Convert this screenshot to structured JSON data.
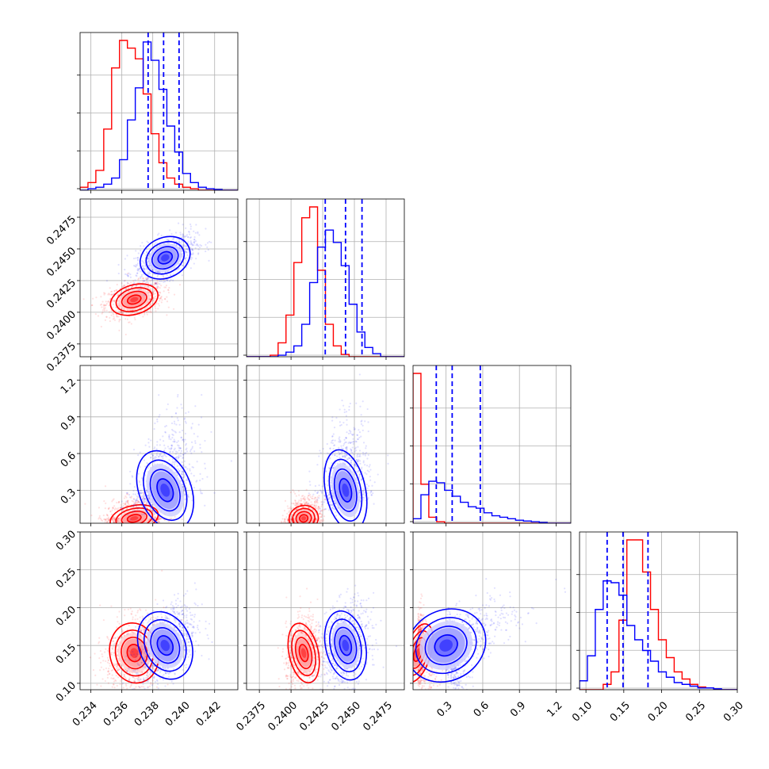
{
  "chart_data": {
    "type": "corner",
    "grid": true,
    "colors": {
      "red_series": "#ff0000",
      "blue_series": "#0000ff",
      "quantile_lines": "#0000ff"
    },
    "parameters": [
      {
        "range": [
          0.2333,
          0.2435
        ],
        "ticks": [
          0.234,
          0.236,
          0.238,
          0.24,
          0.242
        ],
        "tick_labels": [
          "0.234",
          "0.236",
          "0.238",
          "0.240",
          "0.242"
        ]
      },
      {
        "range": [
          0.23649,
          0.24894
        ],
        "ticks": [
          0.2375,
          0.24,
          0.2425,
          0.245,
          0.2475
        ],
        "tick_labels": [
          "0.2375",
          "0.2400",
          "0.2425",
          "0.2450",
          "0.2475"
        ]
      },
      {
        "range": [
          0.03,
          1.32
        ],
        "ticks": [
          0.3,
          0.6,
          0.9,
          1.2
        ],
        "tick_labels": [
          "0.3",
          "0.6",
          "0.9",
          "1.2"
        ]
      },
      {
        "range": [
          0.0915,
          0.3
        ],
        "ticks": [
          0.1,
          0.15,
          0.2,
          0.25,
          0.3
        ],
        "tick_labels": [
          "0.10",
          "0.15",
          "0.20",
          "0.25",
          "0.30"
        ]
      }
    ],
    "quantiles_blue": [
      [
        0.2377,
        0.2387,
        0.2397
      ],
      [
        0.2427,
        0.2443,
        0.2456
      ],
      [
        0.22,
        0.35,
        0.58
      ],
      [
        0.128,
        0.149,
        0.182
      ]
    ],
    "series": [
      {
        "color": "#ff0000",
        "means": [
          0.2368,
          0.241,
          0.07,
          0.14
        ],
        "sds": [
          0.00075,
          0.00055,
          0.05,
          0.019
        ],
        "correlations": {
          "0-1": 0.3,
          "0-2": 0.2,
          "0-3": 0.2,
          "1-2": 0.2,
          "1-3": 0.2,
          "2-3": -0.3
        },
        "peak_densities": [
          1,
          1,
          1,
          1
        ],
        "histogram_values": [
          [
            0.02,
            0.05,
            0.13,
            0.4,
            0.8,
            0.98,
            0.93,
            0.86,
            0.63,
            0.37,
            0.18,
            0.08,
            0.04,
            0.02,
            0.01,
            0,
            0,
            0,
            0,
            0
          ],
          [
            0,
            0,
            0,
            0.01,
            0.09,
            0.27,
            0.61,
            0.9,
            0.97,
            0.56,
            0.21,
            0.07,
            0.015,
            0,
            0,
            0,
            0,
            0,
            0,
            0
          ],
          [
            1.0,
            0.26,
            0.04,
            0.01,
            0,
            0,
            0,
            0,
            0,
            0,
            0,
            0,
            0,
            0,
            0,
            0,
            0,
            0,
            0,
            0
          ],
          [
            0,
            0,
            0,
            0.03,
            0.1,
            0.39,
            0.84,
            0.84,
            0.66,
            0.45,
            0.28,
            0.18,
            0.1,
            0.06,
            0.03,
            0.015,
            0.01,
            0,
            0,
            0
          ]
        ]
      },
      {
        "color": "#0000ff",
        "means": [
          0.2388,
          0.2443,
          0.3,
          0.15
        ],
        "sds": [
          0.0008,
          0.00075,
          0.16,
          0.022
        ],
        "correlations": {
          "0-1": 0.55,
          "0-2": 0.4,
          "0-3": 0.45,
          "1-2": 0.2,
          "1-3": 0.2,
          "2-3": 0.7
        },
        "peak_densities": [
          1,
          1,
          1,
          1
        ],
        "histogram_values": [
          [
            0,
            0.01,
            0.02,
            0.04,
            0.08,
            0.2,
            0.46,
            0.67,
            0.97,
            0.85,
            0.66,
            0.42,
            0.25,
            0.11,
            0.05,
            0.02,
            0.01,
            0.005,
            0,
            0
          ],
          [
            0,
            0,
            0,
            0,
            0.01,
            0.03,
            0.07,
            0.21,
            0.48,
            0.71,
            0.82,
            0.74,
            0.59,
            0.34,
            0.16,
            0.06,
            0.02,
            0,
            0,
            0
          ],
          [
            0.03,
            0.19,
            0.28,
            0.27,
            0.22,
            0.18,
            0.14,
            0.11,
            0.1,
            0.07,
            0.05,
            0.04,
            0.03,
            0.02,
            0.015,
            0.01,
            0.005,
            0,
            0,
            0
          ],
          [
            0.05,
            0.19,
            0.45,
            0.61,
            0.6,
            0.53,
            0.36,
            0.28,
            0.22,
            0.16,
            0.1,
            0.07,
            0.04,
            0.03,
            0.02,
            0.01,
            0.01,
            0.005,
            0,
            0
          ]
        ]
      }
    ]
  }
}
